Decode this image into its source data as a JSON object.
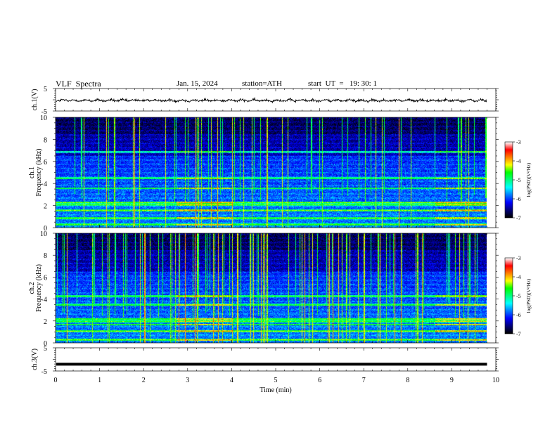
{
  "header": {
    "title": "VLF  Spectra",
    "date": "Jan. 15, 2024",
    "station": "station=ATH",
    "start_ut": "start  UT  =   19: 30: 1"
  },
  "chart_data": [
    {
      "type": "line",
      "panel": "ch1-waveform",
      "ylabel": "ch.1(V)",
      "ylim": [
        -5,
        5
      ],
      "yticks": [
        "5",
        "-5"
      ],
      "x_range": [
        0,
        10
      ],
      "series": [
        {
          "trace": "noise around -0.3 V, amplitude ~1 V",
          "x_end": 9.8
        }
      ]
    },
    {
      "type": "heatmap",
      "panel": "ch1-spectrogram",
      "ylabel_line1": "ch.1",
      "ylabel_line2": "Frequency (kHz)",
      "ylim": [
        0,
        10
      ],
      "yticks": [
        "0",
        "2",
        "4",
        "6",
        "8",
        "10"
      ],
      "x_range": [
        0,
        9.8
      ],
      "colorbar": {
        "label": "log(PSD)(V²/Hz)",
        "range": [
          -7,
          -3
        ],
        "ticks": [
          "-3",
          "-4",
          "-5",
          "-6",
          "-7"
        ]
      },
      "notable_bands_khz": [
        0.3,
        0.9,
        1.6,
        2.1,
        2.3,
        3.6,
        4.5,
        6.9
      ],
      "emissions": "broadband vertical streaks (sferics) across 0-10 kHz"
    },
    {
      "type": "heatmap",
      "panel": "ch2-spectrogram",
      "ylabel_line1": "ch.2",
      "ylabel_line2": "Frequency (kHz)",
      "ylim": [
        0,
        10
      ],
      "yticks": [
        "0",
        "2",
        "4",
        "6",
        "8",
        "10"
      ],
      "x_range": [
        0,
        9.8
      ],
      "colorbar": {
        "label": "log(PSD)(V²/Hz)",
        "range": [
          -7,
          -3
        ],
        "ticks": [
          "-3",
          "-4",
          "-5",
          "-6",
          "-7"
        ]
      },
      "notable_bands_khz": [
        0.3,
        1.1,
        1.7,
        2.0,
        2.2,
        3.5,
        4.3
      ],
      "emissions": "broadband vertical streaks (sferics) across 0-10 kHz"
    },
    {
      "type": "line",
      "panel": "ch3-waveform",
      "ylabel": "ch.3(V)",
      "ylim": [
        -5,
        5
      ],
      "yticks": [
        "5",
        "-5"
      ],
      "x_range": [
        0,
        10
      ],
      "series": [
        {
          "trace": "flat at about -2.1 V",
          "value": -2.1,
          "x_end": 9.8
        }
      ]
    }
  ],
  "xaxis": {
    "label": "Time  (min)",
    "range": [
      0,
      10
    ],
    "ticks": [
      "0",
      "1",
      "2",
      "3",
      "4",
      "5",
      "6",
      "7",
      "8",
      "9",
      "10"
    ]
  },
  "colors": {
    "colormap": [
      "#000000",
      "#00007a",
      "#0000ff",
      "#007cff",
      "#00ffff",
      "#00ff7f",
      "#00ff00",
      "#ffff00",
      "#ff8000",
      "#ff0000",
      "#ffffff"
    ],
    "trace": "#000000"
  }
}
